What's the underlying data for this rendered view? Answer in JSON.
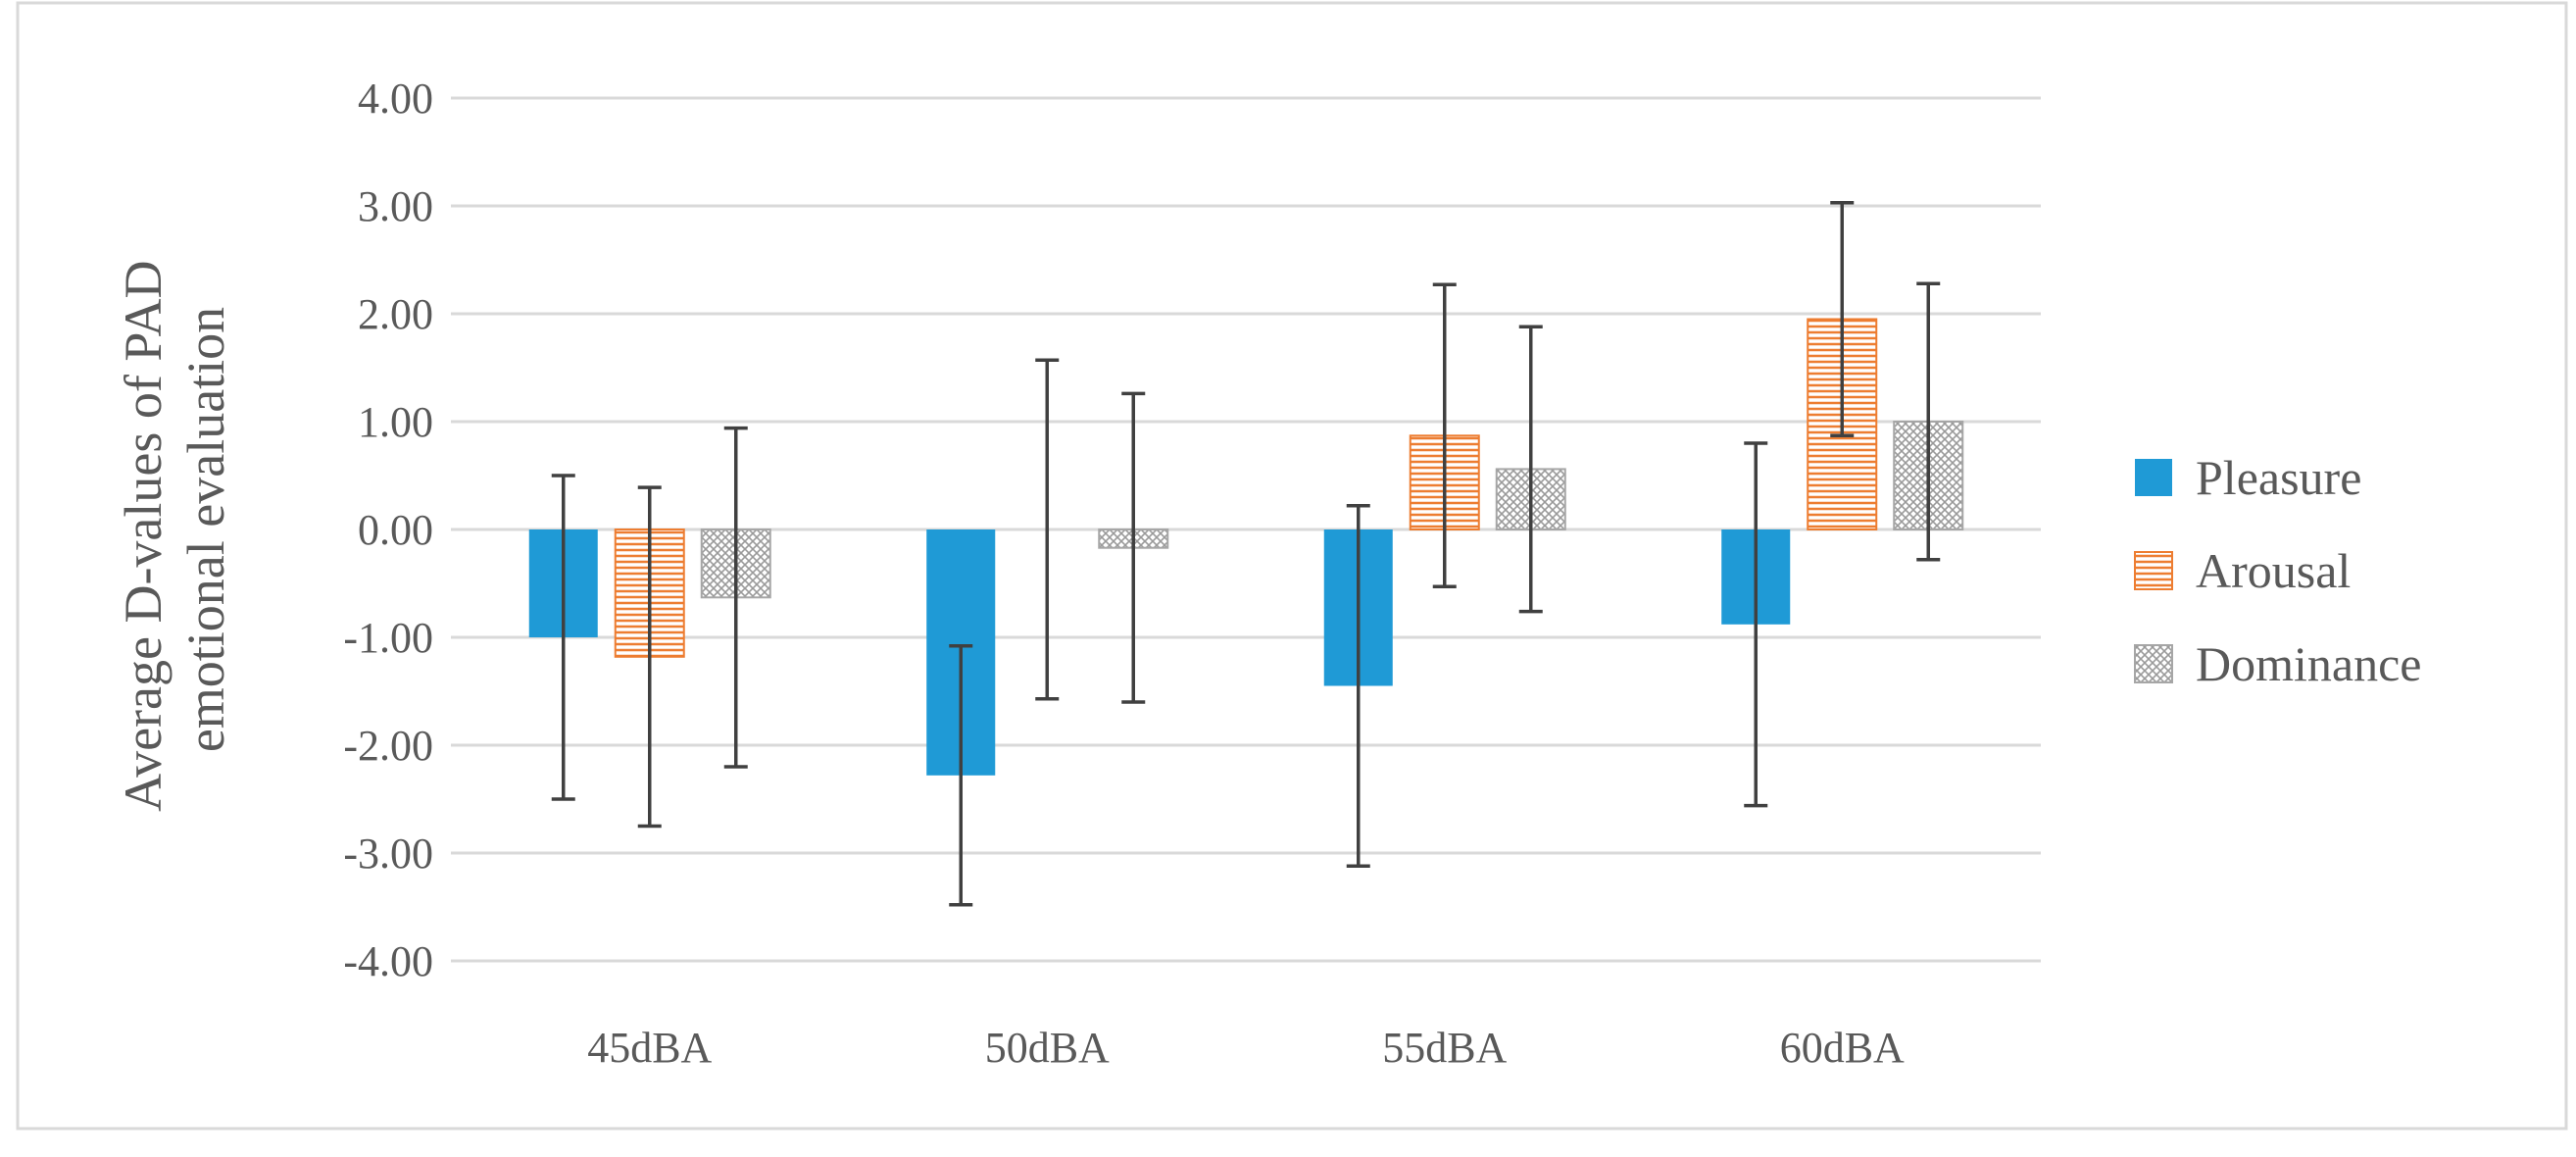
{
  "chart_data": {
    "type": "bar",
    "title": "",
    "xlabel": "",
    "ylabel_lines": [
      "Average D-values of PAD",
      "emotional evaluation"
    ],
    "categories": [
      "45dBA",
      "50dBA",
      "55dBA",
      "60dBA"
    ],
    "ylim": [
      -4,
      4
    ],
    "y_ticks": [
      "4.00",
      "3.00",
      "2.00",
      "1.00",
      "0.00",
      "-1.00",
      "-2.00",
      "-3.00",
      "-4.00"
    ],
    "grid": true,
    "legend_position": "right",
    "series": [
      {
        "name": "Pleasure",
        "color": "#1f9ad6",
        "pattern": "solid",
        "values": [
          -1.0,
          -2.28,
          -1.45,
          -0.88
        ],
        "errors": [
          1.5,
          1.2,
          1.67,
          1.68
        ]
      },
      {
        "name": "Arousal",
        "color": "#ed7d31",
        "pattern": "horizontal-lines",
        "values": [
          -1.18,
          0.0,
          0.87,
          1.95
        ],
        "errors": [
          1.57,
          1.57,
          1.4,
          1.08
        ]
      },
      {
        "name": "Dominance",
        "color": "#a6a6a6",
        "pattern": "crosshatch",
        "values": [
          -0.63,
          -0.17,
          0.56,
          1.0
        ],
        "errors": [
          1.57,
          1.43,
          1.32,
          1.28
        ]
      }
    ]
  }
}
